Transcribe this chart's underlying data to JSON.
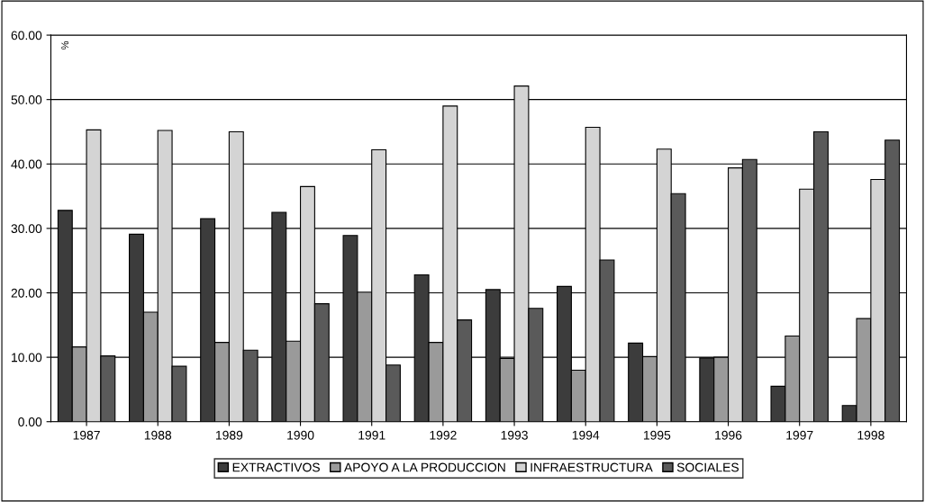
{
  "chart_data": {
    "type": "bar",
    "ylabel": "%",
    "categories": [
      "1987",
      "1988",
      "1989",
      "1990",
      "1991",
      "1992",
      "1993",
      "1994",
      "1995",
      "1996",
      "1997",
      "1998"
    ],
    "series": [
      {
        "name": "EXTRACTIVOS",
        "color": "#3c3c3c",
        "values": [
          32.8,
          29.1,
          31.5,
          32.5,
          28.9,
          22.8,
          20.5,
          21.0,
          12.2,
          9.9,
          5.5,
          2.5
        ]
      },
      {
        "name": "APOYO A LA PRODUCCION",
        "color": "#9a9a9a",
        "values": [
          11.6,
          17.0,
          12.3,
          12.5,
          20.1,
          12.3,
          9.8,
          8.0,
          10.1,
          10.0,
          13.3,
          16.0
        ]
      },
      {
        "name": "INFRAESTRUCTURA",
        "color": "#d4d4d4",
        "values": [
          45.3,
          45.2,
          45.0,
          36.5,
          42.2,
          49.0,
          52.1,
          45.7,
          42.3,
          39.4,
          36.1,
          37.6
        ]
      },
      {
        "name": "SOCIALES",
        "color": "#5a5a5a",
        "values": [
          10.2,
          8.6,
          11.1,
          18.3,
          8.8,
          15.8,
          17.6,
          25.1,
          35.4,
          40.7,
          45.0,
          43.7
        ]
      }
    ],
    "ylim": [
      0,
      60
    ],
    "yticks": [
      {
        "value": 0,
        "label": "0.00"
      },
      {
        "value": 10,
        "label": "10.00"
      },
      {
        "value": 20,
        "label": "20.00"
      },
      {
        "value": 30,
        "label": "30.00"
      },
      {
        "value": 40,
        "label": "40.00"
      },
      {
        "value": 50,
        "label": "50.00"
      },
      {
        "value": 60,
        "label": "60.00"
      }
    ],
    "grid": "y",
    "legend": "bottom"
  }
}
